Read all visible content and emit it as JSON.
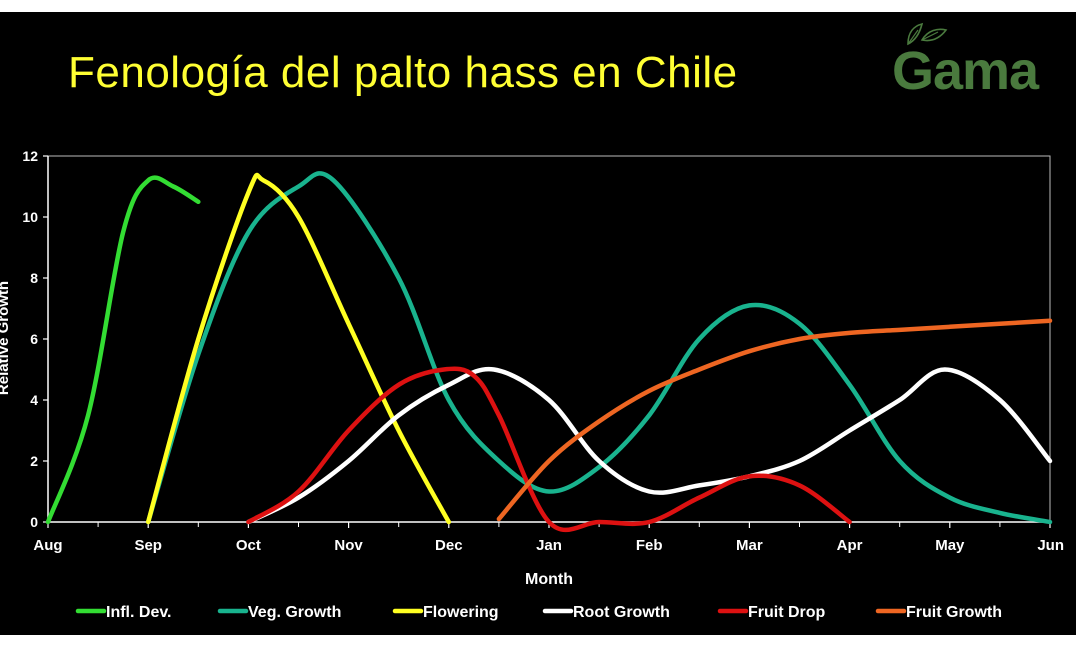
{
  "slide": {
    "title": "Fenología del palto hass en Chile",
    "logo_text": "Gama",
    "logo_color": "#4a7a3e",
    "title_color": "#ffff33"
  },
  "chart_data": {
    "type": "line",
    "xlabel": "Month",
    "ylabel": "Relative Growth",
    "ylim": [
      0,
      12
    ],
    "yticks": [
      0,
      2,
      4,
      6,
      8,
      10,
      12
    ],
    "x_categories": [
      "Aug",
      "Sep",
      "Oct",
      "Nov",
      "Dec",
      "Jan",
      "Feb",
      "Mar",
      "Apr",
      "May",
      "Jun"
    ],
    "xlim": [
      0,
      10
    ],
    "grid": false,
    "legend_position": "bottom",
    "series": [
      {
        "name": "Infl. Dev.",
        "color": "#33dd33",
        "points": [
          [
            0,
            0
          ],
          [
            0.4,
            3.5
          ],
          [
            0.75,
            9.5
          ],
          [
            1.0,
            11.2
          ],
          [
            1.25,
            11.0
          ],
          [
            1.5,
            10.5
          ]
        ]
      },
      {
        "name": "Veg. Growth",
        "color": "#19b38e",
        "points": [
          [
            1.0,
            0
          ],
          [
            1.5,
            5.5
          ],
          [
            2.0,
            9.5
          ],
          [
            2.5,
            11.0
          ],
          [
            2.85,
            11.2
          ],
          [
            3.5,
            8.0
          ],
          [
            4.0,
            4.0
          ],
          [
            4.5,
            2.0
          ],
          [
            5.0,
            1.0
          ],
          [
            5.5,
            1.8
          ],
          [
            6.0,
            3.5
          ],
          [
            6.5,
            6.0
          ],
          [
            7.0,
            7.1
          ],
          [
            7.5,
            6.5
          ],
          [
            8.0,
            4.5
          ],
          [
            8.5,
            2.0
          ],
          [
            9.0,
            0.8
          ],
          [
            9.5,
            0.3
          ],
          [
            10.0,
            0
          ]
        ]
      },
      {
        "name": "Flowering",
        "color": "#ffff22",
        "points": [
          [
            1.0,
            0
          ],
          [
            1.5,
            6.0
          ],
          [
            2.0,
            10.8
          ],
          [
            2.15,
            11.2
          ],
          [
            2.5,
            10.0
          ],
          [
            3.0,
            6.5
          ],
          [
            3.5,
            3.0
          ],
          [
            4.0,
            0
          ]
        ]
      },
      {
        "name": "Root Growth",
        "color": "#ffffff",
        "points": [
          [
            2.0,
            0
          ],
          [
            2.5,
            0.8
          ],
          [
            3.0,
            2.0
          ],
          [
            3.5,
            3.5
          ],
          [
            4.0,
            4.5
          ],
          [
            4.45,
            5.0
          ],
          [
            5.0,
            4.0
          ],
          [
            5.5,
            2.0
          ],
          [
            6.0,
            1.0
          ],
          [
            6.5,
            1.2
          ],
          [
            7.0,
            1.5
          ],
          [
            7.5,
            2.0
          ],
          [
            8.0,
            3.0
          ],
          [
            8.5,
            4.0
          ],
          [
            8.95,
            5.0
          ],
          [
            9.5,
            4.0
          ],
          [
            10.0,
            2.0
          ]
        ]
      },
      {
        "name": "Fruit Drop",
        "color": "#dd1111",
        "points": [
          [
            2.0,
            0
          ],
          [
            2.5,
            1.0
          ],
          [
            3.0,
            3.0
          ],
          [
            3.5,
            4.5
          ],
          [
            3.95,
            5.0
          ],
          [
            4.25,
            4.8
          ],
          [
            4.5,
            3.5
          ],
          [
            5.0,
            0
          ],
          [
            5.5,
            0
          ],
          [
            6.0,
            0
          ],
          [
            6.5,
            0.8
          ],
          [
            7.0,
            1.5
          ],
          [
            7.5,
            1.2
          ],
          [
            8.0,
            0
          ]
        ]
      },
      {
        "name": "Fruit Growth",
        "color": "#ee6622",
        "points": [
          [
            4.5,
            0.1
          ],
          [
            5.0,
            2.0
          ],
          [
            5.5,
            3.3
          ],
          [
            6.0,
            4.3
          ],
          [
            6.5,
            5.0
          ],
          [
            7.0,
            5.6
          ],
          [
            7.5,
            6.0
          ],
          [
            8.0,
            6.2
          ],
          [
            8.5,
            6.3
          ],
          [
            9.0,
            6.4
          ],
          [
            9.5,
            6.5
          ],
          [
            10.0,
            6.6
          ]
        ]
      }
    ]
  }
}
